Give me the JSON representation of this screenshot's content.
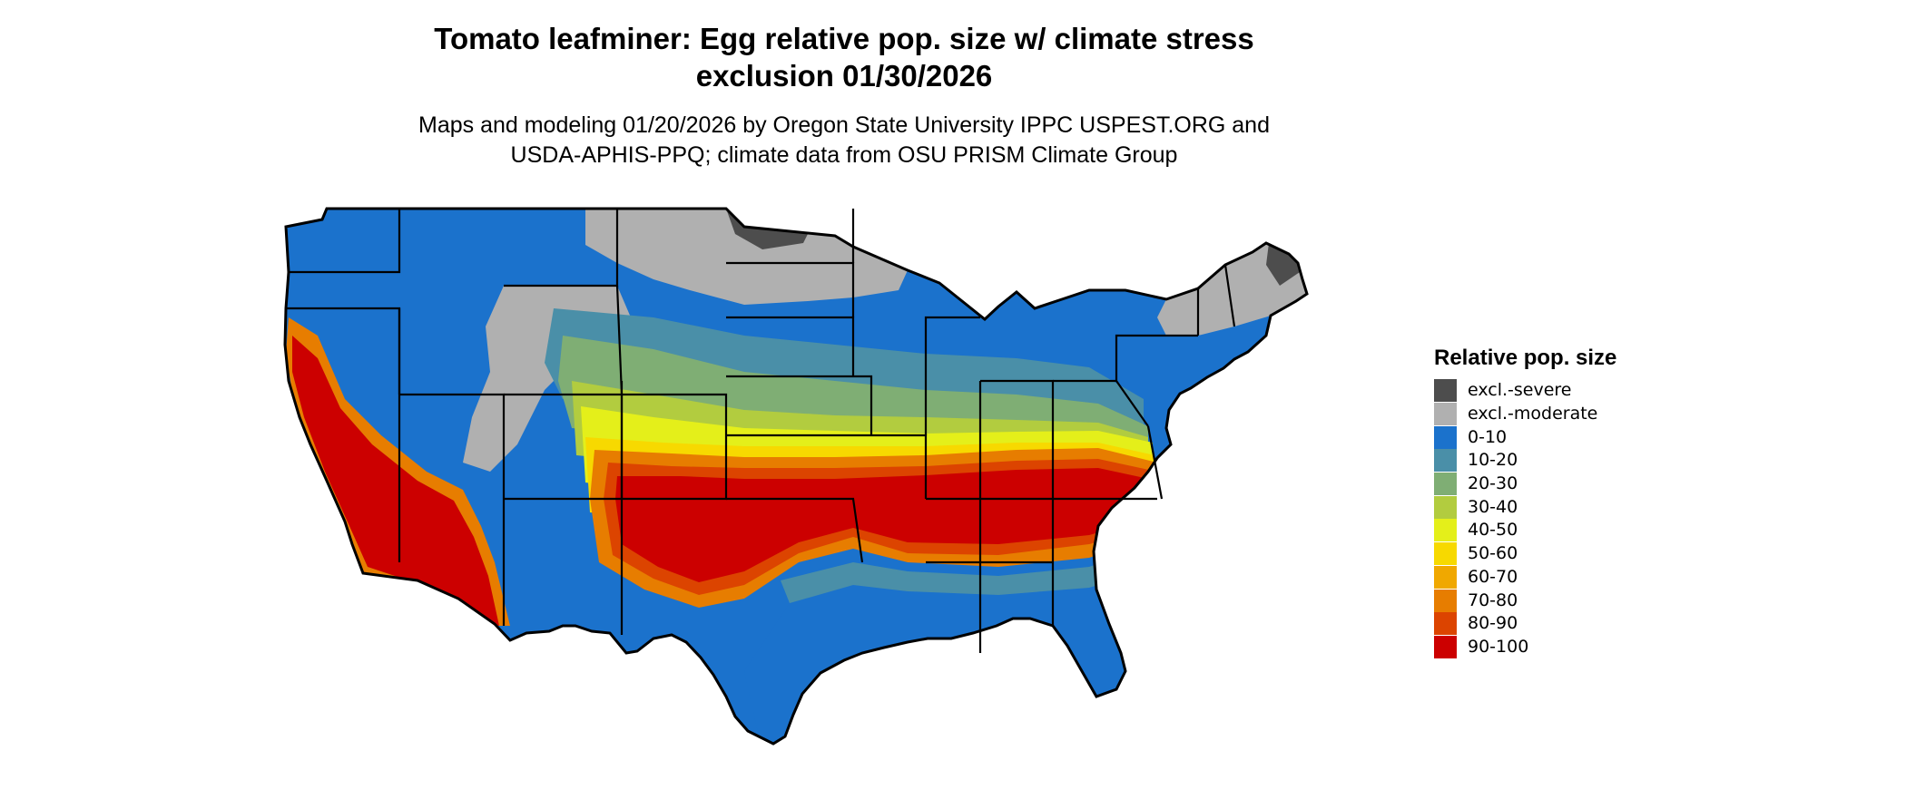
{
  "title": {
    "line1": "Tomato leafminer: Egg relative pop. size w/ climate stress",
    "line2": "exclusion 01/30/2026"
  },
  "subtitle": {
    "line1": "Maps and modeling 01/20/2026 by Oregon State University IPPC USPEST.ORG and",
    "line2": "USDA-APHIS-PPQ; climate data from OSU PRISM Climate Group"
  },
  "map": {
    "region": "contiguous-united-states",
    "colors": {
      "background_land": "#1b72cc",
      "state_border": "#000000"
    }
  },
  "legend": {
    "title": "Relative pop. size",
    "items": [
      {
        "label": "excl.-severe",
        "color": "#4d4d4d"
      },
      {
        "label": "excl.-moderate",
        "color": "#b0b0b0"
      },
      {
        "label": "0-10",
        "color": "#1b72cc"
      },
      {
        "label": "10-20",
        "color": "#4a8fa8"
      },
      {
        "label": "20-30",
        "color": "#7fae74"
      },
      {
        "label": "30-40",
        "color": "#b2cc3f"
      },
      {
        "label": "40-50",
        "color": "#e4ef1a"
      },
      {
        "label": "50-60",
        "color": "#f7d900"
      },
      {
        "label": "60-70",
        "color": "#f0a800"
      },
      {
        "label": "70-80",
        "color": "#e77d00"
      },
      {
        "label": "80-90",
        "color": "#dc4400"
      },
      {
        "label": "90-100",
        "color": "#cc0000"
      }
    ]
  }
}
